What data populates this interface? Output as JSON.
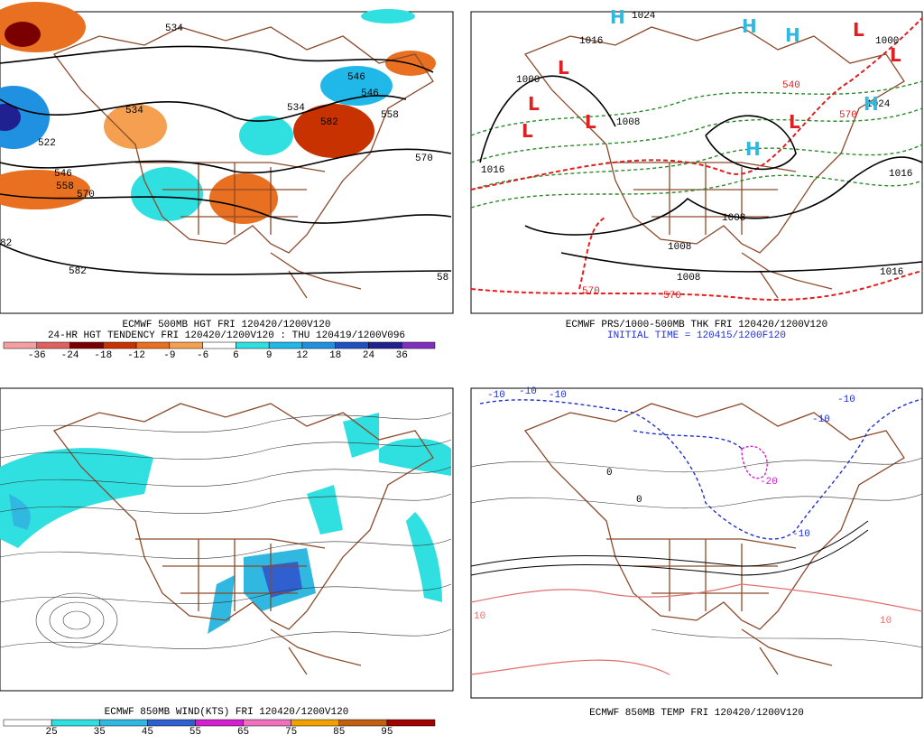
{
  "panels": [
    {
      "captions": [
        "ECMWF 500MB HGT FRI 120420/1200V120",
        "24-HR HGT TENDENCY FRI 120420/1200V120 : THU 120419/1200V096"
      ],
      "scale": {
        "labels": [
          "-36",
          "-24",
          "-18",
          "-12",
          "-9",
          "-6",
          "6",
          "9",
          "12",
          "18",
          "24",
          "36"
        ],
        "colors": [
          "#f4a0a0",
          "#e06060",
          "#7a0000",
          "#c83200",
          "#e87020",
          "#f4a050",
          "#ffffff",
          "#30e0e0",
          "#20b8e8",
          "#2090e0",
          "#2050c0",
          "#202090",
          "#8030c0"
        ]
      },
      "contour_labels": [
        "534",
        "534",
        "546",
        "558",
        "570",
        "582",
        "522",
        "546",
        "558",
        "570",
        "546",
        "582",
        "534",
        "82",
        "58"
      ]
    },
    {
      "captions": [
        "ECMWF PRS/1000-500MB THK FRI 120420/1200V120",
        "INITIAL TIME = 120415/1200F120"
      ],
      "contour_labels": [
        "1024",
        "1016",
        "1008",
        "1000",
        "1008",
        "1016",
        "1000",
        "1008",
        "1008",
        "1016",
        "570",
        "540",
        "570",
        "570",
        "1016",
        "1024"
      ],
      "lows": [
        "L",
        "L",
        "L",
        "L",
        "L",
        "L",
        "L"
      ],
      "highs": [
        "H",
        "H",
        "H",
        "H",
        "H"
      ]
    },
    {
      "captions": [
        "ECMWF 850MB WIND(KTS) FRI 120420/1200V120"
      ],
      "scale": {
        "labels": [
          "25",
          "35",
          "45",
          "55",
          "65",
          "75",
          "85",
          "95"
        ],
        "colors": [
          "#ffffff",
          "#30e0e0",
          "#30b8e0",
          "#3060d0",
          "#d020d0",
          "#f070c0",
          "#f0a000",
          "#c06010",
          "#a00000"
        ]
      }
    },
    {
      "captions": [
        "ECMWF 850MB TEMP FRI 120420/1200V120"
      ],
      "contour_labels": [
        "-10",
        "-10",
        "-10",
        "-10",
        "-10",
        "-10",
        "-20",
        "0",
        "0",
        "10",
        "10"
      ]
    }
  ]
}
